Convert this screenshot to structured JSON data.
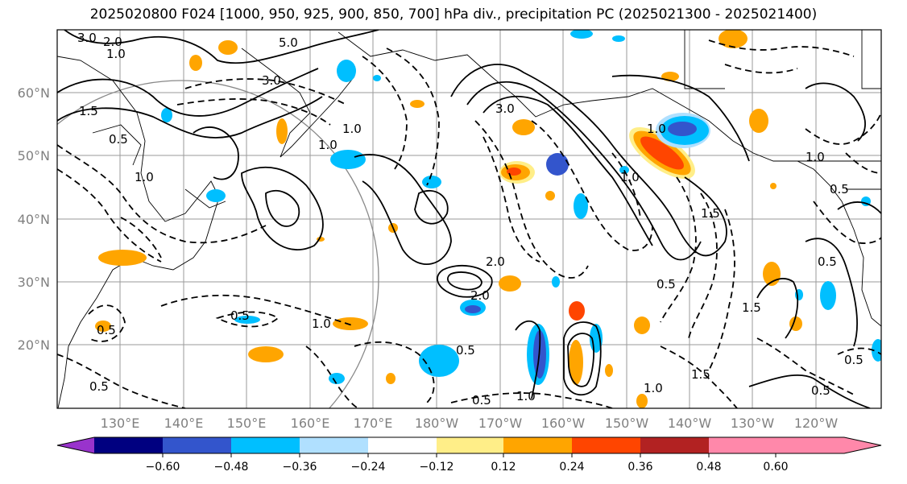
{
  "title": "2025020800 F024 [1000, 950, 925, 900, 850, 700] hPa div., precipitation PC (2025021300 - 2025021400)",
  "lat_labels": [
    "60°N",
    "50°N",
    "40°N",
    "30°N",
    "20°N"
  ],
  "lon_labels": [
    "130°E",
    "140°E",
    "150°E",
    "160°E",
    "170°E",
    "180°W",
    "170°W",
    "160°W",
    "150°W",
    "140°W",
    "130°W",
    "120°W"
  ],
  "contour_labels": [
    "3.0",
    "2.0",
    "1.0",
    "5.0",
    "3.0",
    "1.5",
    "0.5",
    "1.0",
    "2.0",
    "3.0",
    "1.0",
    "0.5",
    "1.5",
    "1.0",
    "0.5",
    "0.5",
    "1.0",
    "0.5",
    "1.0",
    "0.5",
    "1.5",
    "2.0",
    "1.0",
    "0.5",
    "0.5",
    "1.0",
    "0.5",
    "1.0",
    "1.5",
    "0.5",
    "0.5",
    "1.0"
  ],
  "colorbar": {
    "ticks": [
      "−0.60",
      "−0.48",
      "−0.36",
      "−0.24",
      "−0.12",
      "0.12",
      "0.24",
      "0.36",
      "0.48",
      "0.60"
    ],
    "colors": [
      "#9933cc",
      "#000080",
      "#3355cc",
      "#00bfff",
      "#b0e0ff",
      "#ffffff",
      "#ffee88",
      "#ffa500",
      "#ff4500",
      "#b22222",
      "#ff88aa"
    ]
  }
}
